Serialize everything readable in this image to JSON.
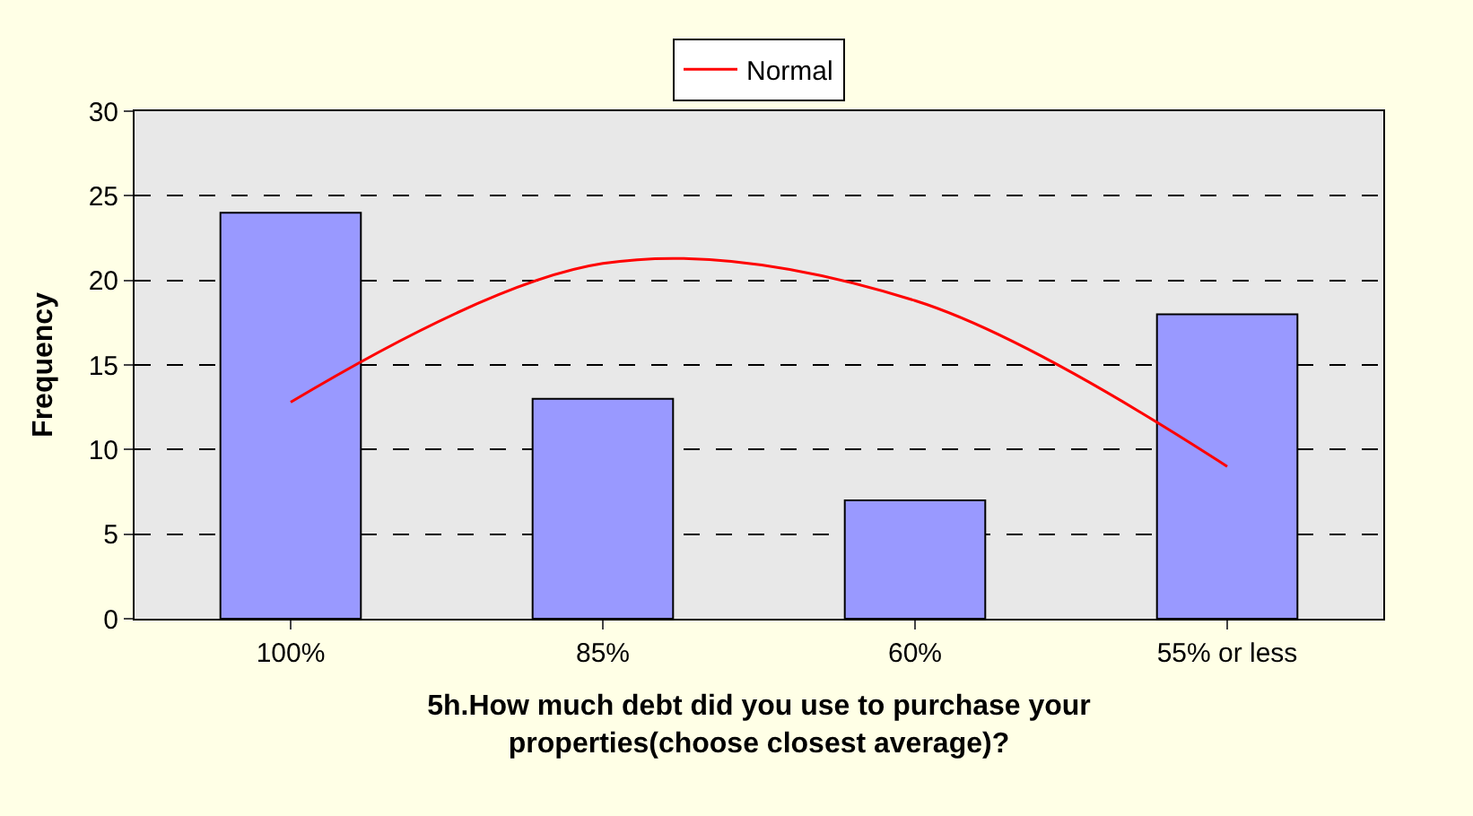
{
  "chart_data": {
    "type": "bar",
    "xlabel": "5h.How much debt did you use to purchase your properties(choose closest average)?",
    "ylabel": "Frequency",
    "categories": [
      "100%",
      "85%",
      "60%",
      "55% or less"
    ],
    "series": [
      {
        "color": "#9999ff",
        "values": [
          24,
          13,
          7,
          18
        ]
      },
      {
        "type": "line",
        "name": "Normal",
        "color": "#ff0000",
        "values": [
          12.8,
          21.0,
          18.8,
          9.0
        ]
      }
    ],
    "ylim": [
      0,
      30
    ],
    "yticks": [
      0,
      5,
      10,
      15,
      20,
      25,
      30
    ],
    "grid": "y",
    "legend": "top",
    "marker": "none",
    "line_style": "solid"
  }
}
